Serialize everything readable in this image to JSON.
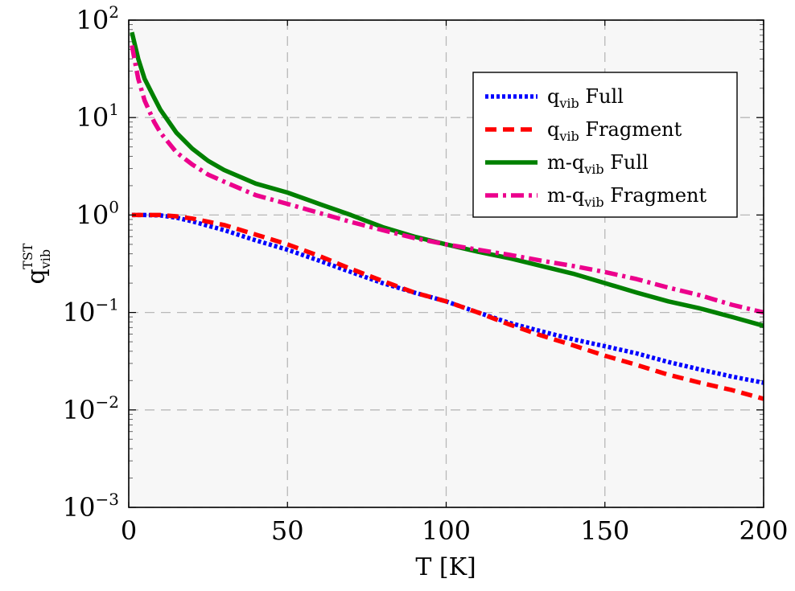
{
  "chart_data": {
    "type": "line",
    "xlabel": "T [K]",
    "ylabel": {
      "base": "q",
      "sub": "vib",
      "sup": "TST"
    },
    "xlim": [
      0,
      200
    ],
    "ylim": [
      0.001,
      100
    ],
    "yscale": "log",
    "grid": true,
    "legend_position": "top-right",
    "x_ticks": [
      0,
      50,
      100,
      150,
      200
    ],
    "y_ticks": [
      {
        "value": 0.001,
        "base": "10",
        "exp": "−3"
      },
      {
        "value": 0.01,
        "base": "10",
        "exp": "−2"
      },
      {
        "value": 0.1,
        "base": "10",
        "exp": "−1"
      },
      {
        "value": 1,
        "base": "10",
        "exp": "0"
      },
      {
        "value": 10,
        "base": "10",
        "exp": "1"
      },
      {
        "value": 100,
        "base": "10",
        "exp": "2"
      }
    ],
    "series": [
      {
        "name": {
          "pre": "",
          "base": "q",
          "sub": "vib",
          "post": " Full"
        },
        "color": "#0000ff",
        "style": "dotted",
        "x": [
          1,
          5,
          10,
          15,
          20,
          30,
          40,
          50,
          60,
          70,
          80,
          90,
          100,
          110,
          120,
          130,
          140,
          150,
          160,
          170,
          180,
          190,
          200
        ],
        "y": [
          1.0,
          1.0,
          0.99,
          0.94,
          0.86,
          0.7,
          0.55,
          0.44,
          0.34,
          0.26,
          0.2,
          0.16,
          0.13,
          0.1,
          0.078,
          0.064,
          0.053,
          0.045,
          0.038,
          0.031,
          0.026,
          0.022,
          0.019
        ]
      },
      {
        "name": {
          "pre": "",
          "base": "q",
          "sub": "vib",
          "post": " Fragment"
        },
        "color": "#ff0000",
        "style": "dashed",
        "x": [
          1,
          5,
          10,
          15,
          20,
          30,
          40,
          50,
          60,
          70,
          80,
          90,
          100,
          110,
          120,
          130,
          140,
          150,
          160,
          170,
          180,
          190,
          200
        ],
        "y": [
          1.0,
          1.0,
          1.0,
          0.97,
          0.92,
          0.79,
          0.63,
          0.5,
          0.38,
          0.28,
          0.21,
          0.16,
          0.13,
          0.1,
          0.075,
          0.058,
          0.046,
          0.036,
          0.029,
          0.023,
          0.019,
          0.016,
          0.013
        ]
      },
      {
        "name": {
          "pre": "m-",
          "base": "q",
          "sub": "vib",
          "post": " Full"
        },
        "color": "#008000",
        "style": "solid",
        "x": [
          1,
          3,
          5,
          8,
          10,
          15,
          20,
          25,
          30,
          40,
          50,
          60,
          70,
          80,
          90,
          100,
          110,
          120,
          130,
          140,
          150,
          160,
          170,
          180,
          190,
          200
        ],
        "y": [
          75,
          40,
          25,
          16,
          12,
          7,
          4.8,
          3.6,
          2.9,
          2.1,
          1.7,
          1.3,
          1.0,
          0.75,
          0.6,
          0.5,
          0.42,
          0.36,
          0.3,
          0.25,
          0.2,
          0.16,
          0.13,
          0.11,
          0.09,
          0.073
        ]
      },
      {
        "name": {
          "pre": "m-",
          "base": "q",
          "sub": "vib",
          "post": " Fragment"
        },
        "color": "#ec008c",
        "style": "dashdot",
        "x": [
          1,
          3,
          5,
          8,
          10,
          15,
          20,
          25,
          30,
          40,
          50,
          60,
          70,
          80,
          90,
          100,
          110,
          120,
          130,
          140,
          150,
          160,
          170,
          180,
          190,
          200
        ],
        "y": [
          55,
          25,
          15,
          9,
          7,
          4.4,
          3.3,
          2.6,
          2.2,
          1.6,
          1.3,
          1.05,
          0.85,
          0.7,
          0.58,
          0.5,
          0.44,
          0.39,
          0.34,
          0.3,
          0.26,
          0.22,
          0.18,
          0.15,
          0.12,
          0.1
        ]
      }
    ]
  }
}
